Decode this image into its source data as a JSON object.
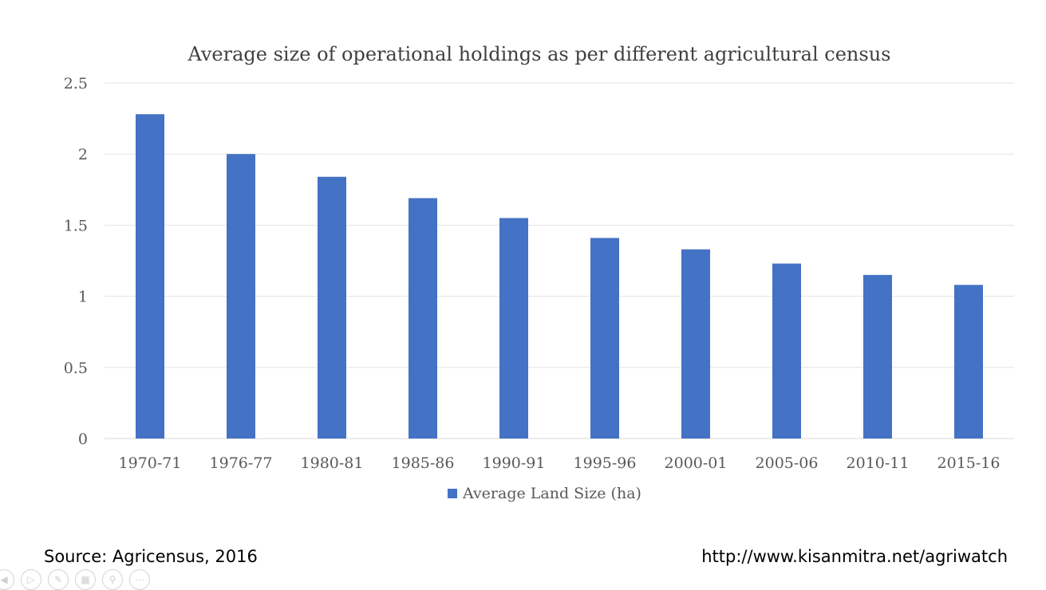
{
  "chart_data": {
    "type": "bar",
    "title": "Average size of operational holdings as per different agricultural census",
    "categories": [
      "1970-71",
      "1976-77",
      "1980-81",
      "1985-86",
      "1990-91",
      "1995-96",
      "2000-01",
      "2005-06",
      "2010-11",
      "2015-16"
    ],
    "series": [
      {
        "name": "Average Land Size (ha)",
        "values": [
          2.28,
          2.0,
          1.84,
          1.69,
          1.55,
          1.41,
          1.33,
          1.23,
          1.15,
          1.08
        ],
        "color": "#4472c4"
      }
    ],
    "ylim": [
      0,
      2.5
    ],
    "yticks": [
      "0",
      "0.5",
      "1",
      "1.5",
      "2",
      "2.5"
    ],
    "grid": true,
    "legend_position": "bottom"
  },
  "footer": {
    "source": "Source: Agricensus, 2016",
    "url": "http://www.kisanmitra.net/agriwatch"
  },
  "controls": {
    "icons": [
      "previous-icon",
      "play-icon",
      "pen-icon",
      "slides-icon",
      "zoom-icon",
      "more-icon"
    ]
  }
}
